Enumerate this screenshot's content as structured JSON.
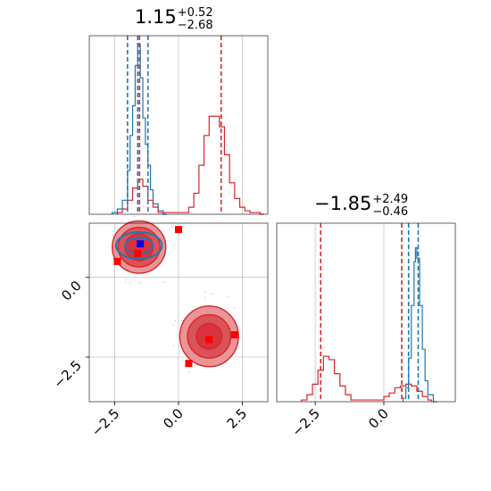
{
  "titles": {
    "param1": {
      "median": "1.15",
      "upper": "+0.52",
      "lower": "−2.68"
    },
    "param2": {
      "median": "−1.85",
      "upper": "+2.49",
      "lower": "−0.46"
    }
  },
  "colors": {
    "blue": "#1f77b4",
    "red": "#d62728",
    "red_fill": "#e8898c",
    "red_fill_inner": "#d94b52",
    "grid": "#b0b0b0",
    "marker_red": "#ff0000",
    "marker_blue": "#0000ff"
  },
  "chart_data": [
    {
      "type": "area",
      "panel": "marginal-param1",
      "xlim": [
        -3.5,
        3.5
      ],
      "grid": true,
      "series": [
        {
          "color": "#1f77b4",
          "x": [
            -2.6,
            -2.4,
            -2.2,
            -2.0,
            -1.9,
            -1.8,
            -1.7,
            -1.6,
            -1.5,
            -1.4,
            -1.3,
            -1.2,
            -1.1,
            -1.0,
            -0.8,
            -0.6
          ],
          "y": [
            0.01,
            0.03,
            0.08,
            0.25,
            0.45,
            0.62,
            0.85,
            0.97,
            0.78,
            0.55,
            0.4,
            0.28,
            0.14,
            0.06,
            0.02,
            0.0
          ]
        },
        {
          "color": "#d62728",
          "x": [
            -2.4,
            -2.2,
            -2.0,
            -1.8,
            -1.6,
            -1.4,
            -1.2,
            -1.0,
            -0.8,
            0.2,
            0.4,
            0.6,
            0.8,
            1.0,
            1.2,
            1.4,
            1.6,
            1.8,
            2.0,
            2.2,
            2.4,
            2.6,
            2.8,
            3.2
          ],
          "y": [
            0.01,
            0.03,
            0.08,
            0.15,
            0.2,
            0.16,
            0.08,
            0.04,
            0.01,
            0.01,
            0.04,
            0.12,
            0.28,
            0.45,
            0.56,
            0.56,
            0.5,
            0.34,
            0.18,
            0.09,
            0.04,
            0.02,
            0.01,
            0.0
          ]
        }
      ],
      "vlines": [
        {
          "x": -2.0,
          "color": "#1f77b4"
        },
        {
          "x": -1.6,
          "color": "#1f77b4"
        },
        {
          "x": -1.2,
          "color": "#1f77b4"
        },
        {
          "x": -1.53,
          "color": "#d62728"
        },
        {
          "x": 1.67,
          "color": "#d62728"
        }
      ]
    },
    {
      "type": "scatter",
      "panel": "joint",
      "xlim": [
        -3.5,
        3.5
      ],
      "ylim": [
        -3.9,
        1.7
      ],
      "xticks": [
        "−2.5",
        "0.0",
        "2.5"
      ],
      "xtick_values": [
        -2.5,
        0.0,
        2.5
      ],
      "yticks": [
        "0.0",
        "−2.5"
      ],
      "ytick_values": [
        0.0,
        -2.5
      ],
      "grid": true,
      "contours": [
        {
          "color": "#d62728",
          "center": [
            -1.55,
            0.95
          ],
          "radii": [
            [
              1.05,
              0.82
            ],
            [
              0.82,
              0.62
            ],
            [
              0.55,
              0.42
            ]
          ]
        },
        {
          "color": "#d62728",
          "center": [
            1.2,
            -1.85
          ],
          "radii": [
            [
              1.15,
              0.95
            ],
            [
              0.85,
              0.68
            ],
            [
              0.5,
              0.4
            ]
          ]
        },
        {
          "color": "#1f77b4",
          "center": [
            -1.55,
            1.0
          ],
          "radii": [
            [
              0.9,
              0.42
            ],
            [
              0.55,
              0.25
            ]
          ]
        }
      ],
      "points": [
        {
          "x": -2.4,
          "y": 0.5,
          "color": "#ff0000"
        },
        {
          "x": -1.6,
          "y": 0.75,
          "color": "#ff0000"
        },
        {
          "x": 0.0,
          "y": 1.5,
          "color": "#ff0000"
        },
        {
          "x": 1.2,
          "y": -1.95,
          "color": "#ff0000"
        },
        {
          "x": 2.2,
          "y": -1.8,
          "color": "#ff0000"
        },
        {
          "x": 0.4,
          "y": -2.7,
          "color": "#ff0000"
        },
        {
          "x": -1.5,
          "y": 1.05,
          "color": "#0000ff"
        }
      ]
    },
    {
      "type": "area",
      "panel": "marginal-param2",
      "xlim": [
        -3.9,
        2.6
      ],
      "xticks": [
        "−2.5",
        "0.0"
      ],
      "xtick_values": [
        -2.5,
        0.0
      ],
      "grid": true,
      "series": [
        {
          "color": "#1f77b4",
          "x": [
            0.7,
            0.8,
            0.9,
            1.0,
            1.1,
            1.15,
            1.2,
            1.3,
            1.4,
            1.5,
            1.6,
            1.8
          ],
          "y": [
            0.02,
            0.08,
            0.25,
            0.55,
            0.8,
            0.88,
            0.82,
            0.55,
            0.3,
            0.12,
            0.04,
            0.0
          ]
        },
        {
          "color": "#d62728",
          "x": [
            -3.0,
            -2.8,
            -2.6,
            -2.4,
            -2.2,
            -2.0,
            -1.8,
            -1.6,
            -1.4,
            -1.2,
            -0.2,
            0.0,
            0.2,
            0.4,
            0.6,
            0.8,
            1.0,
            1.2,
            1.4,
            1.6
          ],
          "y": [
            0.01,
            0.04,
            0.1,
            0.18,
            0.26,
            0.24,
            0.16,
            0.09,
            0.04,
            0.01,
            0.01,
            0.03,
            0.05,
            0.08,
            0.09,
            0.1,
            0.09,
            0.06,
            0.03,
            0.01
          ]
        }
      ],
      "vlines": [
        {
          "x": -2.3,
          "color": "#d62728"
        },
        {
          "x": 0.65,
          "color": "#d62728"
        },
        {
          "x": 0.9,
          "color": "#1f77b4"
        },
        {
          "x": 1.25,
          "color": "#1f77b4"
        }
      ]
    }
  ]
}
